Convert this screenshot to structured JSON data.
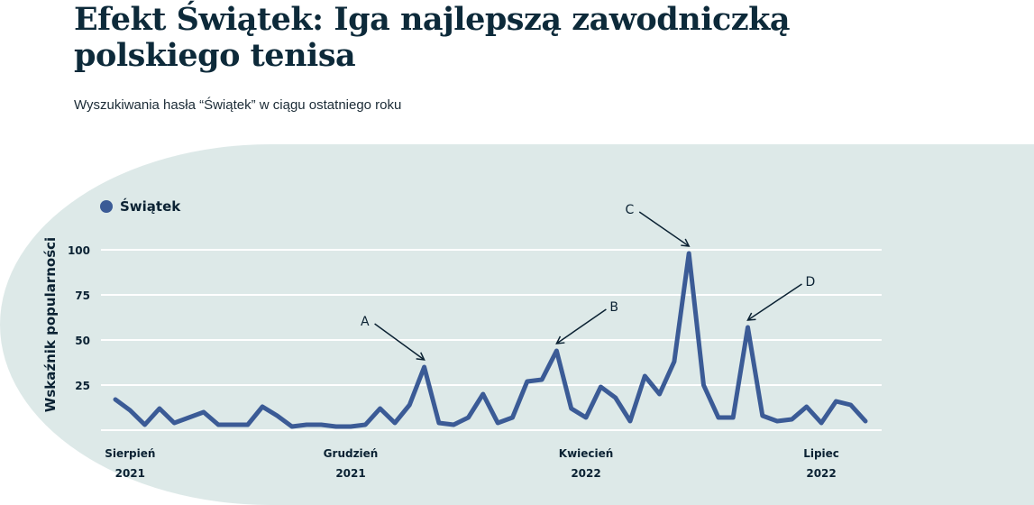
{
  "title": "Efekt Świątek: Iga najlepszą zawodniczką polskiego tenisa",
  "subtitle": "Wyszukiwania hasła “Świątek” w ciągu ostatniego roku",
  "colors": {
    "line": "#3b5b96",
    "panel": "#dde9e8",
    "text": "#0b2233"
  },
  "chart_data": {
    "type": "line",
    "title": "",
    "ylabel": "Wskaźnik popularności",
    "xlabel": "",
    "ylim": [
      0,
      100
    ],
    "yticks": [
      25,
      50,
      75,
      100
    ],
    "grid": true,
    "legend": {
      "placement": "top-left",
      "entries": [
        "Świątek"
      ]
    },
    "xtick_labels": [
      {
        "index": 1,
        "month": "Sierpień",
        "year": "2021"
      },
      {
        "index": 16,
        "month": "Grudzień",
        "year": "2021"
      },
      {
        "index": 32,
        "month": "Kwiecień",
        "year": "2022"
      },
      {
        "index": 48,
        "month": "Lipiec",
        "year": "2022"
      }
    ],
    "series": [
      {
        "name": "Świątek",
        "values": [
          17,
          11,
          3,
          12,
          4,
          7,
          10,
          3,
          3,
          3,
          13,
          8,
          2,
          3,
          3,
          2,
          2,
          3,
          12,
          4,
          14,
          35,
          4,
          3,
          7,
          20,
          4,
          7,
          27,
          28,
          44,
          12,
          7,
          24,
          18,
          5,
          30,
          20,
          38,
          98,
          25,
          7,
          7,
          57,
          8,
          5,
          6,
          13,
          4,
          16,
          14,
          5
        ]
      }
    ],
    "annotations": [
      {
        "label": "A",
        "index": 21
      },
      {
        "label": "B",
        "index": 30
      },
      {
        "label": "C",
        "index": 39
      },
      {
        "label": "D",
        "index": 43
      }
    ]
  }
}
